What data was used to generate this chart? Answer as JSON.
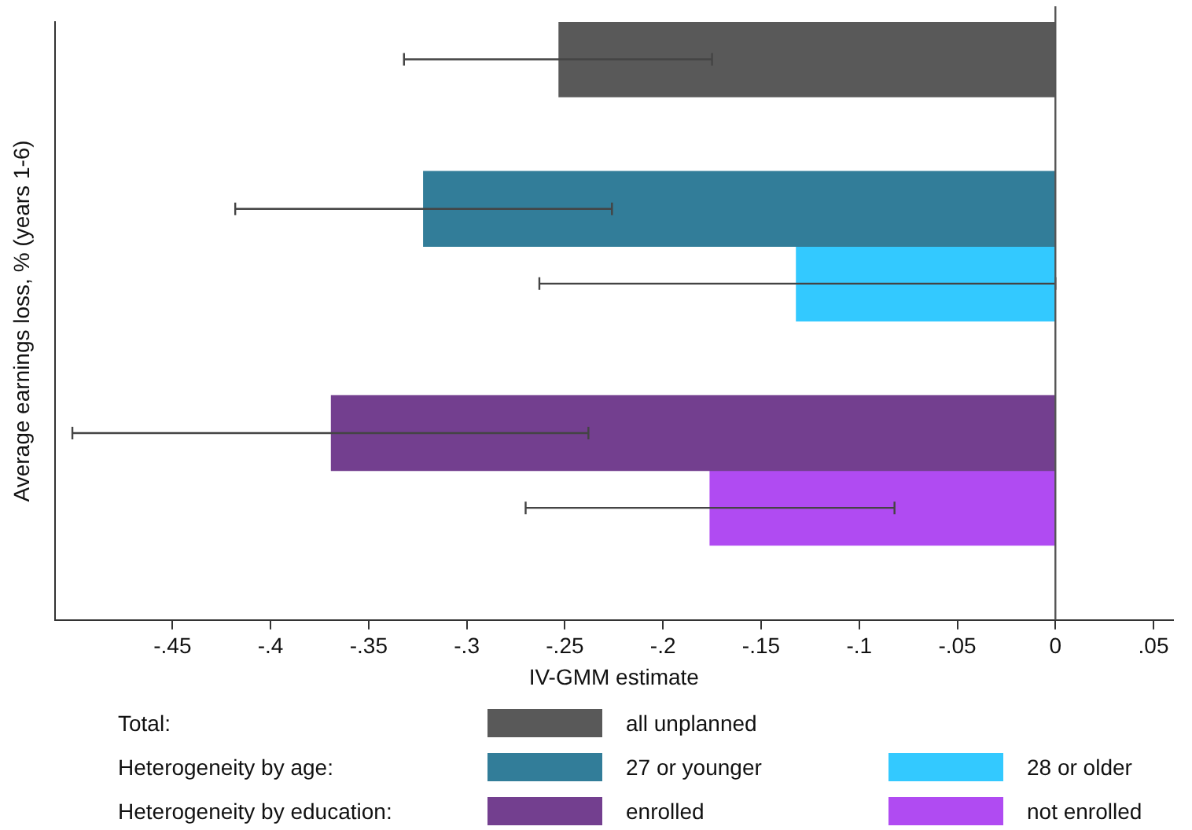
{
  "chart_data": {
    "type": "bar",
    "orientation": "horizontal",
    "xlabel": "IV-GMM estimate",
    "ylabel": "Average earnings loss, % (years 1-6)",
    "categories": [
      null,
      null,
      null,
      null,
      null,
      null,
      null,
      null
    ],
    "series": [
      {
        "name": "all unplanned",
        "color": "#595959",
        "values": [
          -0.253,
          null,
          null,
          null,
          null,
          null,
          null,
          null
        ],
        "errors": [
          [
            -0.332,
            -0.175
          ],
          null,
          null,
          null,
          null,
          null,
          null,
          null
        ]
      },
      {
        "name": "27 or younger",
        "color": "#327d99",
        "values": [
          null,
          null,
          -0.322,
          null,
          null,
          null,
          null,
          null
        ],
        "errors": [
          null,
          null,
          [
            -0.418,
            -0.226
          ],
          null,
          null,
          null,
          null,
          null
        ]
      },
      {
        "name": "28 or older",
        "color": "#33c9ff",
        "values": [
          null,
          null,
          null,
          -0.132,
          null,
          null,
          null,
          null
        ],
        "errors": [
          null,
          null,
          null,
          [
            -0.263,
            0
          ],
          null,
          null,
          null,
          null
        ]
      },
      {
        "name": "enrolled",
        "color": "#733f8f",
        "values": [
          null,
          null,
          null,
          null,
          null,
          -0.369,
          null,
          null
        ],
        "errors": [
          null,
          null,
          null,
          null,
          null,
          [
            -0.501,
            -0.238
          ],
          null,
          null
        ]
      },
      {
        "name": "not enrolled",
        "color": "#b04bf2",
        "values": [
          null,
          null,
          null,
          null,
          null,
          null,
          -0.176,
          null
        ],
        "errors": [
          null,
          null,
          null,
          null,
          null,
          null,
          [
            -0.27,
            -0.082
          ],
          null
        ]
      }
    ],
    "xlim": [
      -0.51,
      0.06
    ],
    "xticks": [
      {
        "value": -0.45,
        "label": "-.45"
      },
      {
        "value": -0.4,
        "label": "-.4"
      },
      {
        "value": -0.35,
        "label": "-.35"
      },
      {
        "value": -0.3,
        "label": "-.3"
      },
      {
        "value": -0.25,
        "label": "-.25"
      },
      {
        "value": -0.2,
        "label": "-.2"
      },
      {
        "value": -0.15,
        "label": "-.15"
      },
      {
        "value": -0.1,
        "label": "-.1"
      },
      {
        "value": -0.05,
        "label": "-.05"
      },
      {
        "value": 0,
        "label": "0"
      },
      {
        "value": 0.05,
        "label": ".05"
      }
    ],
    "ref_lines": [
      {
        "axis": "x",
        "value": 0,
        "color": "#555555"
      }
    ],
    "annotations": [
      "Total:",
      "Heterogeneity by age:",
      "Heterogeneity by education:"
    ],
    "legend": "bottom",
    "grid": false,
    "tick_labels": "x"
  }
}
